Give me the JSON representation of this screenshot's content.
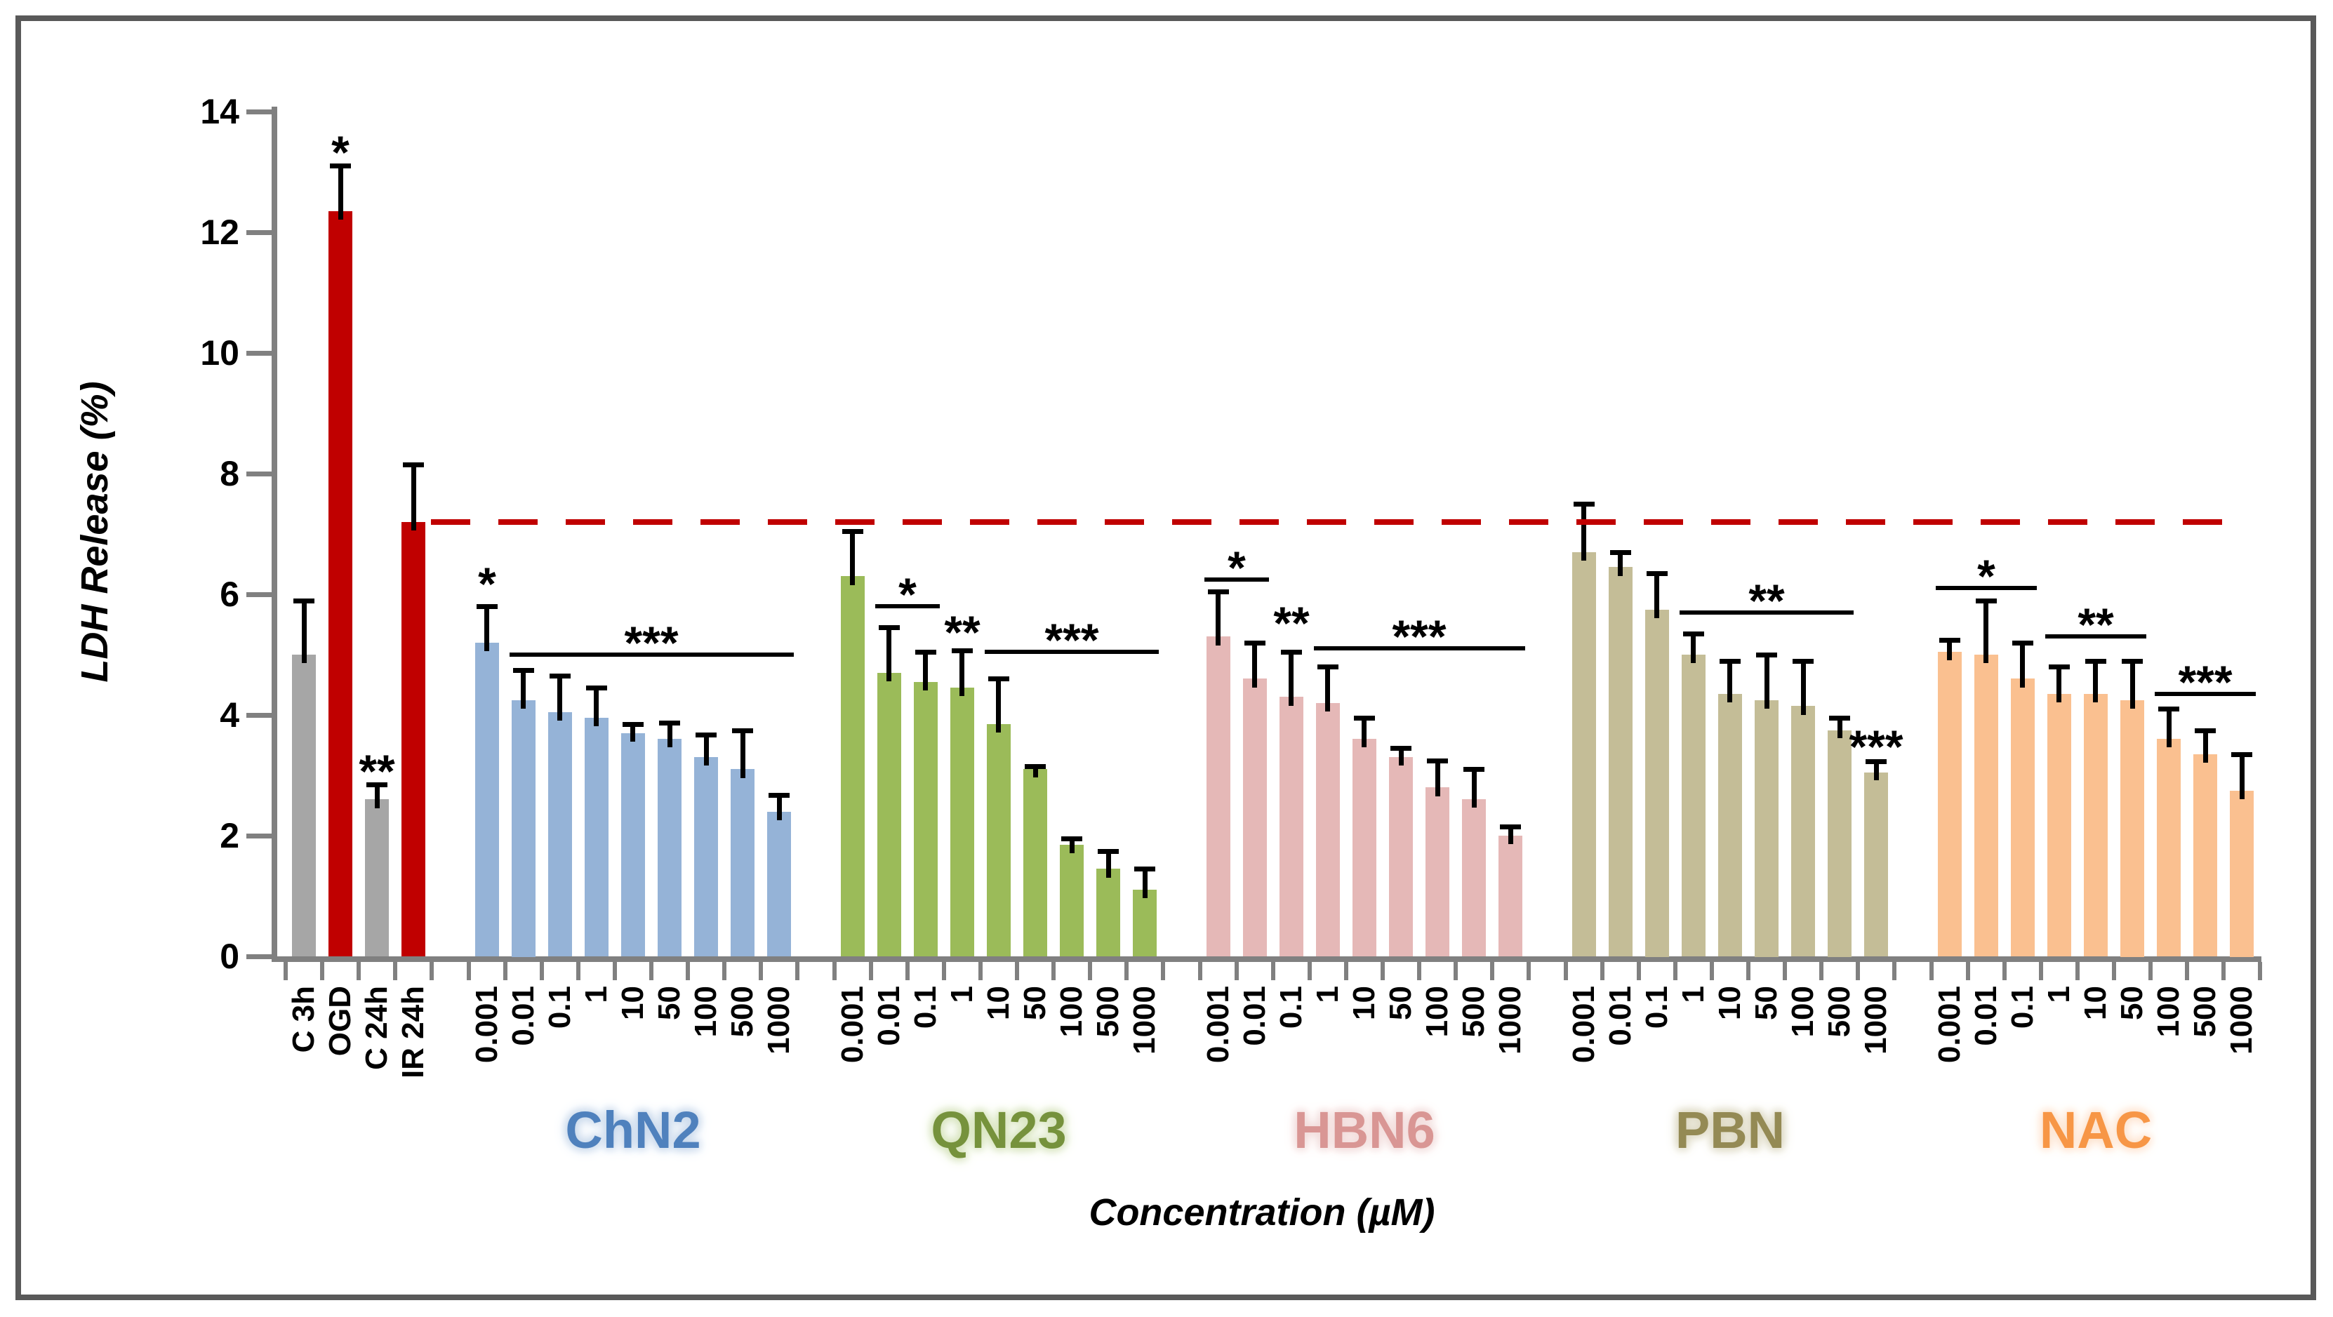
{
  "figure": {
    "border_color": "#595959",
    "background": "#FFFFFF"
  },
  "chart_data": {
    "type": "bar",
    "title": "",
    "ylabel": "LDH Release (%)",
    "xlabel": "Concentration (µM)",
    "ylim": [
      0,
      14
    ],
    "ytick_step": 2,
    "yticks": [
      0,
      2,
      4,
      6,
      8,
      10,
      12,
      14
    ],
    "ytick_labels": [
      "0",
      "2",
      "4",
      "6",
      "8",
      "10",
      "12",
      "14"
    ],
    "grid": "off",
    "legend": "none",
    "reference_line": {
      "value": 7.2,
      "color": "#C00000",
      "style": "dashed"
    },
    "axis_color": "#808080",
    "concentration_labels": [
      "0.001",
      "0.01",
      "0.1",
      "1",
      "10",
      "50",
      "100",
      "500",
      "1000"
    ],
    "control_group": {
      "bars": [
        {
          "label": "C 3h",
          "value": 5.0,
          "error": 0.9,
          "color": "#A6A6A6",
          "sig": "",
          "sig_level": null
        },
        {
          "label": "OGD",
          "value": 12.35,
          "error": 0.75,
          "color": "#C00000",
          "sig": "*",
          "sig_level": 13.45
        },
        {
          "label": "C 24h",
          "value": 2.6,
          "error": 0.25,
          "color": "#A6A6A6",
          "sig": "**",
          "sig_level": 3.2
        },
        {
          "label": "IR 24h",
          "value": 7.2,
          "error": 0.95,
          "color": "#C00000",
          "sig": "",
          "sig_level": null
        }
      ]
    },
    "groups": [
      {
        "name": "ChN2",
        "color": "#95B3D7",
        "label_color": "#4F81BD",
        "halo_color": "#C9D9EC",
        "values": [
          5.2,
          4.25,
          4.05,
          3.95,
          3.7,
          3.6,
          3.3,
          3.1,
          2.4
        ],
        "errors": [
          0.6,
          0.5,
          0.6,
          0.5,
          0.15,
          0.27,
          0.37,
          0.65,
          0.28
        ],
        "annotations": [
          {
            "type": "star",
            "bar": 0,
            "text": "*",
            "level": 6.3
          },
          {
            "type": "bracket",
            "from": 1,
            "to": 8,
            "text": "***",
            "level": 5.0
          }
        ]
      },
      {
        "name": "QN23",
        "color": "#9BBB59",
        "label_color": "#76923C",
        "halo_color": "#D7E4BD",
        "values": [
          6.3,
          4.7,
          4.55,
          4.45,
          3.85,
          3.1,
          1.85,
          1.45,
          1.1
        ],
        "errors": [
          0.75,
          0.75,
          0.5,
          0.62,
          0.75,
          0.05,
          0.1,
          0.3,
          0.35
        ],
        "annotations": [
          {
            "type": "bracket",
            "from": 1,
            "to": 2,
            "text": "*",
            "level": 5.8
          },
          {
            "type": "star",
            "bar": 3,
            "text": "**",
            "level": 5.5
          },
          {
            "type": "bracket",
            "from": 4,
            "to": 8,
            "text": "***",
            "level": 5.05
          }
        ]
      },
      {
        "name": "HBN6",
        "color": "#E5B8B7",
        "label_color": "#D99694",
        "halo_color": "#F2DCDB",
        "values": [
          5.3,
          4.6,
          4.3,
          4.2,
          3.6,
          3.3,
          2.8,
          2.6,
          2.0
        ],
        "errors": [
          0.75,
          0.6,
          0.75,
          0.6,
          0.35,
          0.15,
          0.45,
          0.5,
          0.15
        ],
        "annotations": [
          {
            "type": "bracket",
            "from": 0,
            "to": 1,
            "text": "*",
            "level": 6.25
          },
          {
            "type": "star",
            "bar": 2,
            "text": "**",
            "level": 5.65
          },
          {
            "type": "bracket",
            "from": 3,
            "to": 8,
            "text": "***",
            "level": 5.1
          }
        ]
      },
      {
        "name": "PBN",
        "color": "#C4BD97",
        "label_color": "#948A54",
        "halo_color": "#DDD9C3",
        "values": [
          6.7,
          6.45,
          5.75,
          5.0,
          4.35,
          4.25,
          4.15,
          3.75,
          3.05
        ],
        "errors": [
          0.8,
          0.25,
          0.6,
          0.35,
          0.55,
          0.75,
          0.75,
          0.2,
          0.18
        ],
        "annotations": [
          {
            "type": "bracket",
            "from": 3,
            "to": 7,
            "text": "**",
            "level": 5.7
          },
          {
            "type": "star",
            "bar": 8,
            "text": "***",
            "level": 3.6
          }
        ]
      },
      {
        "name": "NAC",
        "color": "#FAC090",
        "label_color": "#F79646",
        "halo_color": "#FDE4D0",
        "values": [
          5.05,
          5.0,
          4.6,
          4.35,
          4.35,
          4.25,
          3.6,
          3.35,
          2.75
        ],
        "errors": [
          0.2,
          0.9,
          0.6,
          0.45,
          0.55,
          0.65,
          0.5,
          0.4,
          0.6
        ],
        "annotations": [
          {
            "type": "bracket",
            "from": 0,
            "to": 2,
            "text": "*",
            "level": 6.1
          },
          {
            "type": "bracket",
            "from": 3,
            "to": 5,
            "text": "**",
            "level": 5.3
          },
          {
            "type": "bracket",
            "from": 6,
            "to": 8,
            "text": "***",
            "level": 4.35
          }
        ]
      }
    ]
  }
}
